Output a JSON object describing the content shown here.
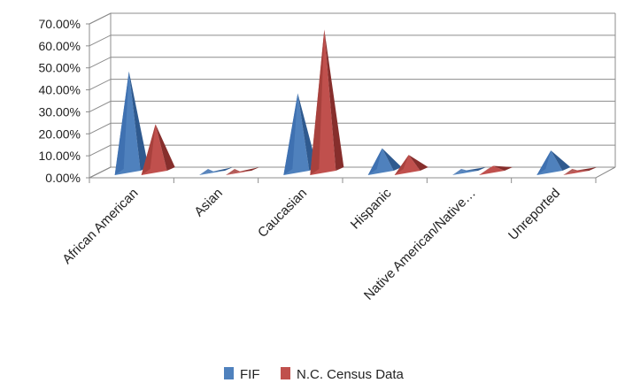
{
  "chart_data": {
    "type": "bar",
    "title": "",
    "xlabel": "",
    "ylabel": "",
    "ylim": [
      0,
      70
    ],
    "y_ticks": [
      "0.00%",
      "10.00%",
      "20.00%",
      "30.00%",
      "40.00%",
      "50.00%",
      "60.00%",
      "70.00%"
    ],
    "categories": [
      "African American",
      "Asian",
      "Caucasian",
      "Hispanic",
      "Native American/Native…",
      "Unreported"
    ],
    "series": [
      {
        "name": "FIF",
        "values": [
          46,
          0.5,
          36,
          11,
          1,
          10
        ],
        "color": "#4F81BD"
      },
      {
        "name": "N.C. Census Data",
        "values": [
          22,
          0.5,
          65,
          8,
          3,
          1
        ],
        "color": "#C0504D"
      }
    ],
    "grid": true,
    "legend_position": "bottom",
    "bar_shape": "3d-pyramid"
  }
}
